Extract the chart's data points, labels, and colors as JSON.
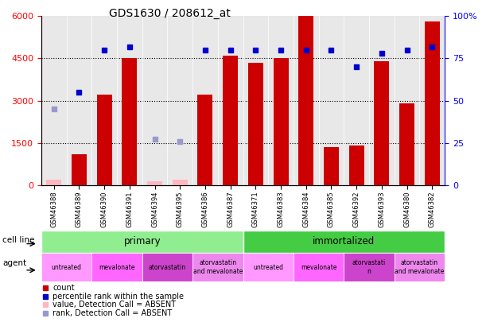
{
  "title": "GDS1630 / 208612_at",
  "samples": [
    "GSM46388",
    "GSM46389",
    "GSM46390",
    "GSM46391",
    "GSM46394",
    "GSM46395",
    "GSM46386",
    "GSM46387",
    "GSM46371",
    "GSM46383",
    "GSM46384",
    "GSM46385",
    "GSM46392",
    "GSM46393",
    "GSM46380",
    "GSM46382"
  ],
  "counts": [
    200,
    1100,
    3200,
    4500,
    150,
    200,
    3200,
    4600,
    4350,
    4500,
    6000,
    1350,
    1400,
    4400,
    2900,
    5800
  ],
  "absent_bar_indices": [
    0,
    4,
    5
  ],
  "all_ranks": [
    45,
    55,
    80,
    82,
    27,
    26,
    80,
    80,
    80,
    80,
    80,
    80,
    70,
    78,
    80,
    82
  ],
  "absent_rank_indices": [
    0,
    4,
    5
  ],
  "ylim_left": [
    0,
    6000
  ],
  "ylim_right": [
    0,
    100
  ],
  "yticks_left": [
    0,
    1500,
    3000,
    4500,
    6000
  ],
  "yticks_right": [
    0,
    25,
    50,
    75,
    100
  ],
  "bar_color": "#CC0000",
  "dot_color": "#0000CC",
  "absent_bar_color": "#FFB6C1",
  "absent_dot_color": "#9999CC",
  "plot_bg": "#E8E8E8",
  "cell_line_primary_color": "#90EE90",
  "cell_line_imm_color": "#44CC44",
  "agent_colors": [
    "#FF99FF",
    "#FF66FF",
    "#CC44CC",
    "#EE88EE"
  ],
  "agent_labels_primary": [
    "untreated",
    "mevalonate",
    "atorvastatin",
    "atorvastatin\nand mevalonate"
  ],
  "agent_labels_imm": [
    "untreated",
    "mevalonate",
    "atorvastati\nn",
    "atorvastatin\nand mevalonate"
  ],
  "legend_items": [
    {
      "color": "#CC0000",
      "marker": "s",
      "label": "count"
    },
    {
      "color": "#0000CC",
      "marker": "s",
      "label": "percentile rank within the sample"
    },
    {
      "color": "#FFB6C1",
      "marker": "s",
      "label": "value, Detection Call = ABSENT"
    },
    {
      "color": "#9999CC",
      "marker": "s",
      "label": "rank, Detection Call = ABSENT"
    }
  ]
}
